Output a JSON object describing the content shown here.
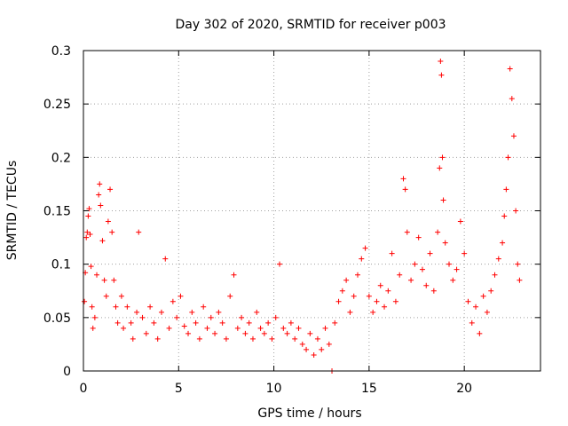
{
  "chart_data": {
    "type": "scatter",
    "title": "Day 302 of 2020, SRMTID for receiver p003",
    "xlabel": "GPS time / hours",
    "ylabel": "SRMTID / TECUs",
    "xlim": [
      0,
      24
    ],
    "ylim": [
      0,
      0.3
    ],
    "x_ticks": [
      0,
      5,
      10,
      15,
      20
    ],
    "x_tick_labels": [
      "0",
      "5",
      "10",
      "15",
      "20"
    ],
    "y_ticks": [
      0,
      0.05,
      0.1,
      0.15,
      0.2,
      0.25,
      0.3
    ],
    "y_tick_labels": [
      "0",
      "0.05",
      "0.1",
      "0.15",
      "0.2",
      "0.25",
      "0.3"
    ],
    "grid": true,
    "legend": "none",
    "marker": "+",
    "color": "#ff0000",
    "series": [
      {
        "name": "SRMTID",
        "points": [
          [
            0.05,
            0.065
          ],
          [
            0.1,
            0.092
          ],
          [
            0.15,
            0.125
          ],
          [
            0.2,
            0.13
          ],
          [
            0.25,
            0.145
          ],
          [
            0.3,
            0.152
          ],
          [
            0.35,
            0.128
          ],
          [
            0.4,
            0.098
          ],
          [
            0.45,
            0.06
          ],
          [
            0.5,
            0.04
          ],
          [
            0.6,
            0.05
          ],
          [
            0.7,
            0.09
          ],
          [
            0.8,
            0.165
          ],
          [
            0.85,
            0.175
          ],
          [
            0.9,
            0.155
          ],
          [
            1.0,
            0.122
          ],
          [
            1.1,
            0.085
          ],
          [
            1.2,
            0.07
          ],
          [
            1.3,
            0.14
          ],
          [
            1.4,
            0.17
          ],
          [
            1.5,
            0.13
          ],
          [
            1.6,
            0.085
          ],
          [
            1.7,
            0.06
          ],
          [
            1.8,
            0.045
          ],
          [
            2.0,
            0.07
          ],
          [
            2.1,
            0.04
          ],
          [
            2.3,
            0.06
          ],
          [
            2.5,
            0.045
          ],
          [
            2.6,
            0.03
          ],
          [
            2.8,
            0.055
          ],
          [
            2.9,
            0.13
          ],
          [
            3.1,
            0.05
          ],
          [
            3.3,
            0.035
          ],
          [
            3.5,
            0.06
          ],
          [
            3.7,
            0.045
          ],
          [
            3.9,
            0.03
          ],
          [
            4.1,
            0.055
          ],
          [
            4.3,
            0.105
          ],
          [
            4.5,
            0.04
          ],
          [
            4.7,
            0.065
          ],
          [
            4.9,
            0.05
          ],
          [
            5.1,
            0.07
          ],
          [
            5.3,
            0.042
          ],
          [
            5.5,
            0.035
          ],
          [
            5.7,
            0.055
          ],
          [
            5.9,
            0.045
          ],
          [
            6.1,
            0.03
          ],
          [
            6.3,
            0.06
          ],
          [
            6.5,
            0.04
          ],
          [
            6.7,
            0.05
          ],
          [
            6.9,
            0.035
          ],
          [
            7.1,
            0.055
          ],
          [
            7.3,
            0.045
          ],
          [
            7.5,
            0.03
          ],
          [
            7.7,
            0.07
          ],
          [
            7.9,
            0.09
          ],
          [
            8.1,
            0.04
          ],
          [
            8.3,
            0.05
          ],
          [
            8.5,
            0.035
          ],
          [
            8.7,
            0.045
          ],
          [
            8.9,
            0.03
          ],
          [
            9.1,
            0.055
          ],
          [
            9.3,
            0.04
          ],
          [
            9.5,
            0.035
          ],
          [
            9.7,
            0.045
          ],
          [
            9.9,
            0.03
          ],
          [
            10.1,
            0.05
          ],
          [
            10.3,
            0.1
          ],
          [
            10.5,
            0.04
          ],
          [
            10.7,
            0.035
          ],
          [
            10.9,
            0.045
          ],
          [
            11.1,
            0.03
          ],
          [
            11.3,
            0.04
          ],
          [
            11.5,
            0.025
          ],
          [
            11.7,
            0.02
          ],
          [
            11.9,
            0.035
          ],
          [
            12.1,
            0.015
          ],
          [
            12.3,
            0.03
          ],
          [
            12.5,
            0.02
          ],
          [
            12.7,
            0.04
          ],
          [
            12.9,
            0.025
          ],
          [
            13.05,
            0.0
          ],
          [
            13.2,
            0.045
          ],
          [
            13.4,
            0.065
          ],
          [
            13.6,
            0.075
          ],
          [
            13.8,
            0.085
          ],
          [
            14.0,
            0.055
          ],
          [
            14.2,
            0.07
          ],
          [
            14.4,
            0.09
          ],
          [
            14.6,
            0.105
          ],
          [
            14.8,
            0.115
          ],
          [
            15.0,
            0.07
          ],
          [
            15.2,
            0.055
          ],
          [
            15.4,
            0.065
          ],
          [
            15.6,
            0.08
          ],
          [
            15.8,
            0.06
          ],
          [
            16.0,
            0.075
          ],
          [
            16.2,
            0.11
          ],
          [
            16.4,
            0.065
          ],
          [
            16.6,
            0.09
          ],
          [
            16.8,
            0.18
          ],
          [
            16.9,
            0.17
          ],
          [
            17.0,
            0.13
          ],
          [
            17.2,
            0.085
          ],
          [
            17.4,
            0.1
          ],
          [
            17.6,
            0.125
          ],
          [
            17.8,
            0.095
          ],
          [
            18.0,
            0.08
          ],
          [
            18.2,
            0.11
          ],
          [
            18.4,
            0.075
          ],
          [
            18.6,
            0.13
          ],
          [
            18.7,
            0.19
          ],
          [
            18.75,
            0.29
          ],
          [
            18.8,
            0.277
          ],
          [
            18.85,
            0.2
          ],
          [
            18.9,
            0.16
          ],
          [
            19.0,
            0.12
          ],
          [
            19.2,
            0.1
          ],
          [
            19.4,
            0.085
          ],
          [
            19.6,
            0.095
          ],
          [
            19.8,
            0.14
          ],
          [
            20.0,
            0.11
          ],
          [
            20.2,
            0.065
          ],
          [
            20.4,
            0.045
          ],
          [
            20.6,
            0.06
          ],
          [
            20.8,
            0.035
          ],
          [
            21.0,
            0.07
          ],
          [
            21.2,
            0.055
          ],
          [
            21.4,
            0.075
          ],
          [
            21.6,
            0.09
          ],
          [
            21.8,
            0.105
          ],
          [
            22.0,
            0.12
          ],
          [
            22.1,
            0.145
          ],
          [
            22.2,
            0.17
          ],
          [
            22.3,
            0.2
          ],
          [
            22.4,
            0.283
          ],
          [
            22.5,
            0.255
          ],
          [
            22.6,
            0.22
          ],
          [
            22.7,
            0.15
          ],
          [
            22.8,
            0.1
          ],
          [
            22.9,
            0.085
          ]
        ]
      }
    ]
  }
}
